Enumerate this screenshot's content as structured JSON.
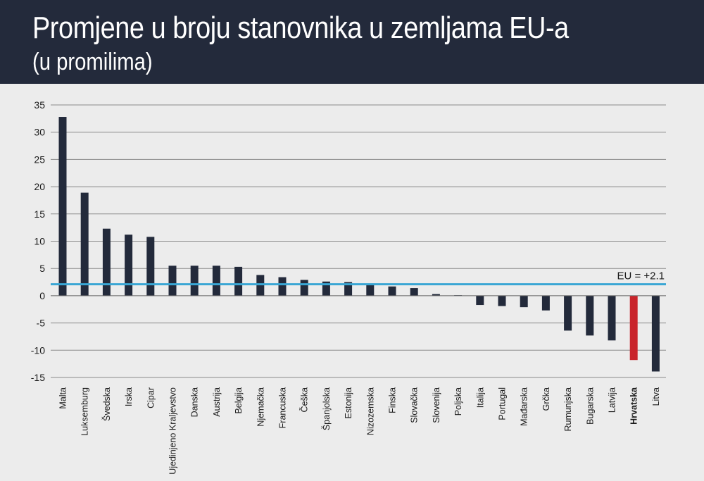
{
  "header": {
    "title": "Promjene u broju stanovnika u zemljama EU-a",
    "subtitle": "(u promilima)"
  },
  "chart_data": {
    "type": "bar",
    "title": "Promjene u broju stanovnika u zemljama EU-a",
    "subtitle": "(u promilima)",
    "ylim": [
      -15,
      35
    ],
    "yticks": [
      35,
      30,
      25,
      20,
      15,
      10,
      5,
      0,
      -5,
      -10,
      -15
    ],
    "grid": true,
    "categories": [
      "Malta",
      "Luksemburg",
      "Švedska",
      "Irska",
      "Cipar",
      "Ujedinjeno Kraljevstvo",
      "Danska",
      "Austrija",
      "Belgija",
      "Njemačka",
      "Francuska",
      "Češka",
      "Španjolska",
      "Estonija",
      "Nizozemska",
      "Finska",
      "Slovačka",
      "Slovenija",
      "Poljska",
      "Italija",
      "Portugal",
      "Mađarska",
      "Grčka",
      "Rumunjska",
      "Bugarska",
      "Latvija",
      "Hrvatska",
      "Litva"
    ],
    "values": [
      32.8,
      18.9,
      12.3,
      11.2,
      10.8,
      5.5,
      5.5,
      5.5,
      5.3,
      3.8,
      3.4,
      2.9,
      2.6,
      2.5,
      2.2,
      1.7,
      1.4,
      0.3,
      0.1,
      -1.7,
      -1.9,
      -2.1,
      -2.7,
      -6.4,
      -7.3,
      -8.2,
      -11.8,
      -13.9
    ],
    "highlight": "Hrvatska",
    "bar_color": "#232a3b",
    "highlight_color": "#c9242b",
    "reference_line": {
      "label": "EU = +2.1",
      "value": 2.1,
      "color": "#3aa6d4"
    }
  }
}
